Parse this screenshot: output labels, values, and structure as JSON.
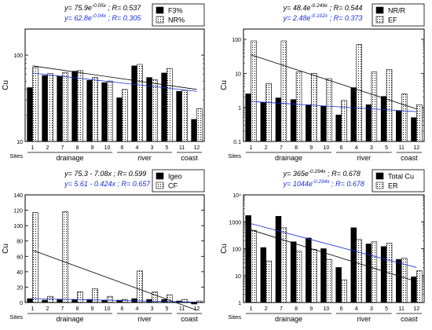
{
  "chart_data": [
    {
      "type": "bar",
      "ylabel": "Cu",
      "yscale": "log",
      "ylim": [
        10,
        200
      ],
      "yticks": [
        "10",
        "100"
      ],
      "xlabel": "Sites",
      "site_labels": [
        "1",
        "2",
        "7",
        "8",
        "9",
        "10",
        "6",
        "4",
        "3",
        "5",
        "11",
        "12"
      ],
      "groups": [
        {
          "label": "drainage",
          "from": 0,
          "to": 5
        },
        {
          "label": "river",
          "from": 6,
          "to": 9
        },
        {
          "label": "coast",
          "from": 10,
          "to": 11
        }
      ],
      "equations": [
        {
          "text": "y= 75.9e",
          "sup": "-0.05x",
          "tail": "; R= 0.537",
          "color": "#000000"
        },
        {
          "text": "y= 62.8e",
          "sup": "-0.04x",
          "tail": "; R= 0.305",
          "color": "#1a2fd6"
        }
      ],
      "series": [
        {
          "name": "F3%",
          "pattern": "solid",
          "values": [
            42,
            58,
            57,
            65,
            51,
            48,
            32,
            75,
            55,
            62,
            38,
            18
          ]
        },
        {
          "name": "NR%",
          "pattern": "dots",
          "values": [
            72,
            61,
            63,
            66,
            55,
            50,
            40,
            78,
            52,
            70,
            39,
            24
          ]
        }
      ],
      "trendlines": [
        {
          "color": "#000000",
          "from": 75,
          "to": 40
        },
        {
          "color": "#1a2fd6",
          "from": 62,
          "to": 38
        }
      ],
      "legend_position": "top-right"
    },
    {
      "type": "bar",
      "ylabel": "Cu",
      "yscale": "log",
      "ylim": [
        0.1,
        200
      ],
      "yticks": [
        "0.1",
        "1",
        "10",
        "100"
      ],
      "xlabel": "Sites",
      "site_labels": [
        "1",
        "2",
        "7",
        "8",
        "9",
        "10",
        "6",
        "4",
        "3",
        "5",
        "11",
        "12"
      ],
      "groups": [
        {
          "label": "drainage",
          "from": 0,
          "to": 5
        },
        {
          "label": "river",
          "from": 6,
          "to": 9
        },
        {
          "label": "coast",
          "from": 10,
          "to": 11
        }
      ],
      "equations": [
        {
          "text": "y= 48.4e",
          "sup": "-0.249x",
          "tail": "; R= 0.544",
          "color": "#000000"
        },
        {
          "text": "y= 2.48e",
          "sup": "-0.102x",
          "tail": "; R= 0.373",
          "color": "#1a2fd6"
        }
      ],
      "series": [
        {
          "name": "NR/R",
          "pattern": "solid",
          "values": [
            2.5,
            1.4,
            1.9,
            1.7,
            1.2,
            1.1,
            0.6,
            3.8,
            1.2,
            2.1,
            0.8,
            0.5
          ]
        },
        {
          "name": "EF",
          "pattern": "dots",
          "values": [
            90,
            5,
            90,
            11,
            10,
            7,
            1.6,
            70,
            11,
            13,
            2.5,
            1.2
          ]
        }
      ],
      "trendlines": [
        {
          "color": "#000000",
          "from": 35,
          "to": 0.9
        },
        {
          "color": "#1a2fd6",
          "from": 1.5,
          "to": 0.75
        }
      ],
      "legend_position": "top-right"
    },
    {
      "type": "bar",
      "ylabel": "Cu",
      "yscale": "linear",
      "ylim": [
        0,
        140
      ],
      "yticks": [
        "0",
        "20",
        "40",
        "60",
        "80",
        "100",
        "120",
        "140"
      ],
      "xlabel": "Sites",
      "site_labels": [
        "1",
        "2",
        "7",
        "8",
        "9",
        "10",
        "6",
        "4",
        "3",
        "5",
        "11",
        "12"
      ],
      "groups": [
        {
          "label": "drainage",
          "from": 0,
          "to": 5
        },
        {
          "label": "river",
          "from": 6,
          "to": 9
        },
        {
          "label": "coast",
          "from": 10,
          "to": 11
        }
      ],
      "equations": [
        {
          "text": "y= 75.3 - 7.08x ",
          "sup": "",
          "tail": "; R= 0.599",
          "color": "#000000"
        },
        {
          "text": "y= 5.61 - 0.424x ",
          "sup": "",
          "tail": "; R= 0.657",
          "color": "#1a2fd6"
        }
      ],
      "series": [
        {
          "name": "Igeo",
          "pattern": "solid",
          "values": [
            5,
            3,
            4,
            4,
            4,
            3,
            3,
            5,
            4,
            4,
            2,
            -2
          ]
        },
        {
          "name": "CF",
          "pattern": "dots",
          "values": [
            117,
            8,
            118,
            14,
            18,
            8,
            4,
            41,
            14,
            10,
            4,
            2
          ]
        }
      ],
      "trendlines": [
        {
          "color": "#000000",
          "from": 68,
          "to": -10
        },
        {
          "color": "#1a2fd6",
          "from": 5,
          "to": 0.5
        }
      ],
      "legend_position": "top-right"
    },
    {
      "type": "bar",
      "ylabel": "Cu",
      "yscale": "log",
      "ylim": [
        1,
        10000
      ],
      "yticks": [
        "1",
        "10",
        "100",
        "1000",
        "10⁴"
      ],
      "xlabel": "Sites",
      "site_labels": [
        "1",
        "2",
        "7",
        "8",
        "9",
        "10",
        "6",
        "4",
        "3",
        "5",
        "11",
        "12"
      ],
      "groups": [
        {
          "label": "drainage",
          "from": 0,
          "to": 5
        },
        {
          "label": "river",
          "from": 6,
          "to": 9
        },
        {
          "label": "coast",
          "from": 10,
          "to": 11
        }
      ],
      "equations": [
        {
          "text": "y= 365e",
          "sup": "-0.294x",
          "tail": "; R= 0.678",
          "color": "#000000"
        },
        {
          "text": "y= 1044e",
          "sup": "-0.294x",
          "tail": "; R= 0.678",
          "color": "#1a2fd6"
        }
      ],
      "series": [
        {
          "name": "Total Cu",
          "pattern": "solid",
          "values": [
            1700,
            110,
            1600,
            180,
            250,
            100,
            20,
            600,
            150,
            120,
            40,
            9
          ]
        },
        {
          "name": "ER",
          "pattern": "dots",
          "values": [
            480,
            35,
            600,
            80,
            95,
            40,
            7,
            220,
            180,
            160,
            45,
            15
          ]
        }
      ],
      "trendlines": [
        {
          "color": "#000000",
          "from": 500,
          "to": 6
        },
        {
          "color": "#1a2fd6",
          "from": 850,
          "to": 20
        }
      ],
      "legend_position": "top-right"
    }
  ]
}
